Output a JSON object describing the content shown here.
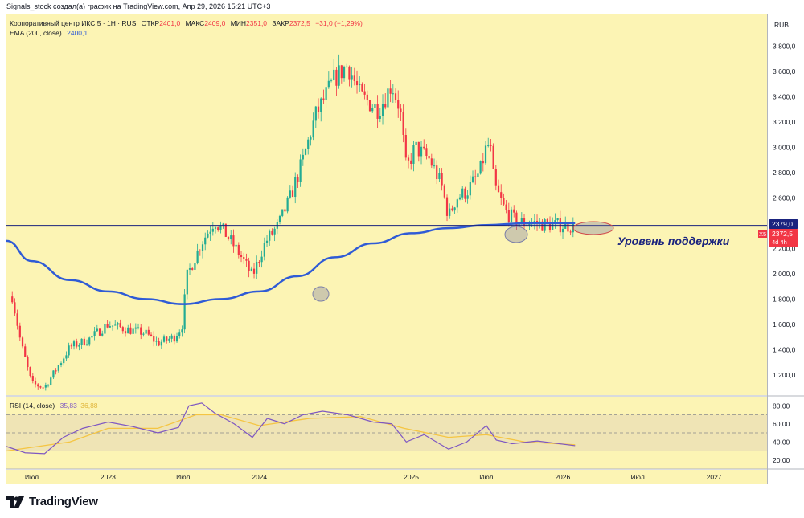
{
  "header_text": "Signals_stock создал(а) график на TradingView.com, Апр 29, 2026 15:21 UTC+3",
  "brand": "TradingView",
  "legend": {
    "title": "Корпоративный центр ИКС 5 · 1Н · RUS",
    "open_label": "ОТКР",
    "open_value": "2401,0",
    "high_label": "МАКС",
    "high_value": "2409,0",
    "low_label": "МИН",
    "low_value": "2351,0",
    "close_label": "ЗАКР",
    "close_value": "2372,5",
    "change": "−31,0 (−1,29%)",
    "ema_label": "EMA (200, close)",
    "ema_value": "2400,1"
  },
  "rsi_legend": {
    "label": "RSI (14, close)",
    "value": "35,83",
    "ma_value": "36,88"
  },
  "currency": "RUB",
  "annotation": "Уровень поддержки",
  "price_tags": {
    "level": "2379,0",
    "last": "2372,5",
    "ticker": "X5",
    "countdown": "4d 4h"
  },
  "colors": {
    "background": "#fcf4b4",
    "up": "#22ab94",
    "down": "#f23645",
    "ema": "#2f5bd6",
    "support": "#1a237e",
    "rsi": "#7e57c2",
    "rsi_ma": "#f5c542",
    "annotation": "#1a237e"
  },
  "chart_data": {
    "type": "candlestick",
    "title": "Корпоративный центр ИКС 5 · 1Н · RUS",
    "price_axis": {
      "ticks": [
        "1 200,0",
        "1 400,0",
        "1 600,0",
        "1 800,0",
        "2 000,0",
        "2 200,0",
        "2 400,0",
        "2 600,0",
        "2 800,0",
        "3 000,0",
        "3 200,0",
        "3 400,0",
        "3 600,0",
        "3 800,0"
      ],
      "range": [
        1040,
        4050
      ]
    },
    "time_axis": {
      "labels": [
        "Июл",
        "2023",
        "Июл",
        "2024",
        "2025",
        "Июл",
        "2026",
        "Июл",
        "2027"
      ],
      "range": [
        "2022-05",
        "2027-05"
      ]
    },
    "support_level": 2379,
    "price_path": [
      {
        "t": "2022-05-15",
        "p": 1820
      },
      {
        "t": "2022-06-05",
        "p": 1450
      },
      {
        "t": "2022-07-01",
        "p": 1130
      },
      {
        "t": "2022-08-01",
        "p": 1100
      },
      {
        "t": "2022-09-01",
        "p": 1260
      },
      {
        "t": "2022-10-01",
        "p": 1420
      },
      {
        "t": "2022-11-15",
        "p": 1480
      },
      {
        "t": "2023-01-01",
        "p": 1600
      },
      {
        "t": "2023-02-15",
        "p": 1560
      },
      {
        "t": "2023-04-01",
        "p": 1530
      },
      {
        "t": "2023-05-01",
        "p": 1450
      },
      {
        "t": "2023-06-10",
        "p": 1500
      },
      {
        "t": "2023-06-28",
        "p": 1580
      },
      {
        "t": "2023-07-10",
        "p": 1980
      },
      {
        "t": "2023-08-15",
        "p": 2250
      },
      {
        "t": "2023-09-15",
        "p": 2420
      },
      {
        "t": "2023-10-15",
        "p": 2300
      },
      {
        "t": "2023-11-15",
        "p": 2150
      },
      {
        "t": "2023-12-15",
        "p": 1980
      },
      {
        "t": "2024-01-15",
        "p": 2250
      },
      {
        "t": "2024-02-15",
        "p": 2380
      },
      {
        "t": "2024-03-15",
        "p": 2600
      },
      {
        "t": "2024-04-15",
        "p": 2900
      },
      {
        "t": "2024-05-15",
        "p": 3250
      },
      {
        "t": "2024-07-01",
        "p": 3550
      },
      {
        "t": "2024-08-01",
        "p": 3650
      },
      {
        "t": "2024-09-01",
        "p": 3400
      },
      {
        "t": "2024-10-15",
        "p": 3300
      },
      {
        "t": "2024-11-15",
        "p": 3500
      },
      {
        "t": "2024-12-05",
        "p": 3300
      },
      {
        "t": "2024-12-20",
        "p": 2820
      },
      {
        "t": "2025-01-10",
        "p": 3000
      },
      {
        "t": "2025-02-15",
        "p": 2900
      },
      {
        "t": "2025-03-15",
        "p": 2700
      },
      {
        "t": "2025-04-01",
        "p": 2450
      },
      {
        "t": "2025-04-20",
        "p": 2600
      },
      {
        "t": "2025-05-15",
        "p": 2650
      },
      {
        "t": "2025-06-15",
        "p": 2800
      },
      {
        "t": "2025-07-01",
        "p": 3000
      },
      {
        "t": "2025-07-10",
        "p": 3020
      },
      {
        "t": "2025-07-20",
        "p": 2700
      },
      {
        "t": "2025-08-15",
        "p": 2500
      },
      {
        "t": "2025-09-15",
        "p": 2400
      },
      {
        "t": "2025-10-15",
        "p": 2410
      },
      {
        "t": "2025-11-15",
        "p": 2390
      },
      {
        "t": "2025-12-15",
        "p": 2385
      },
      {
        "t": "2026-01-10",
        "p": 2380
      },
      {
        "t": "2026-01-31",
        "p": 2372.5
      }
    ],
    "ema_200": [
      {
        "t": "2022-05-01",
        "v": 2260
      },
      {
        "t": "2022-07-01",
        "v": 2100
      },
      {
        "t": "2022-10-01",
        "v": 1950
      },
      {
        "t": "2023-01-01",
        "v": 1860
      },
      {
        "t": "2023-04-01",
        "v": 1800
      },
      {
        "t": "2023-07-01",
        "v": 1760
      },
      {
        "t": "2023-10-01",
        "v": 1800
      },
      {
        "t": "2024-01-01",
        "v": 1860
      },
      {
        "t": "2024-04-01",
        "v": 1980
      },
      {
        "t": "2024-07-01",
        "v": 2130
      },
      {
        "t": "2024-10-01",
        "v": 2240
      },
      {
        "t": "2025-01-01",
        "v": 2320
      },
      {
        "t": "2025-04-01",
        "v": 2360
      },
      {
        "t": "2025-07-01",
        "v": 2385
      },
      {
        "t": "2025-10-01",
        "v": 2398
      },
      {
        "t": "2026-01-31",
        "v": 2400
      }
    ],
    "rsi": {
      "label": "RSI (14, close)",
      "value": 35.83,
      "ma_value": 36.88,
      "levels": [
        30,
        50,
        70
      ],
      "axis_ticks": [
        "20,00",
        "40,00",
        "60,00",
        "80,00"
      ],
      "range": [
        10,
        90
      ],
      "series": [
        {
          "t": "2022-05-01",
          "v": 35
        },
        {
          "t": "2022-06-15",
          "v": 28
        },
        {
          "t": "2022-08-01",
          "v": 27
        },
        {
          "t": "2022-09-15",
          "v": 45
        },
        {
          "t": "2022-11-01",
          "v": 55
        },
        {
          "t": "2023-01-01",
          "v": 62
        },
        {
          "t": "2023-03-01",
          "v": 57
        },
        {
          "t": "2023-05-01",
          "v": 50
        },
        {
          "t": "2023-06-20",
          "v": 56
        },
        {
          "t": "2023-07-15",
          "v": 80
        },
        {
          "t": "2023-08-15",
          "v": 83
        },
        {
          "t": "2023-09-15",
          "v": 72
        },
        {
          "t": "2023-11-01",
          "v": 60
        },
        {
          "t": "2023-12-15",
          "v": 45
        },
        {
          "t": "2024-01-20",
          "v": 66
        },
        {
          "t": "2024-03-01",
          "v": 60
        },
        {
          "t": "2024-04-15",
          "v": 70
        },
        {
          "t": "2024-06-01",
          "v": 74
        },
        {
          "t": "2024-08-01",
          "v": 70
        },
        {
          "t": "2024-10-01",
          "v": 62
        },
        {
          "t": "2024-11-15",
          "v": 60
        },
        {
          "t": "2024-12-20",
          "v": 40
        },
        {
          "t": "2025-02-01",
          "v": 48
        },
        {
          "t": "2025-04-01",
          "v": 32
        },
        {
          "t": "2025-05-15",
          "v": 40
        },
        {
          "t": "2025-07-01",
          "v": 58
        },
        {
          "t": "2025-07-25",
          "v": 42
        },
        {
          "t": "2025-09-01",
          "v": 38
        },
        {
          "t": "2025-11-01",
          "v": 41
        },
        {
          "t": "2026-01-31",
          "v": 35.83
        }
      ],
      "ma": [
        {
          "t": "2022-05-01",
          "v": 30
        },
        {
          "t": "2022-10-01",
          "v": 40
        },
        {
          "t": "2023-01-01",
          "v": 55
        },
        {
          "t": "2023-05-01",
          "v": 55
        },
        {
          "t": "2023-08-01",
          "v": 70
        },
        {
          "t": "2023-10-01",
          "v": 70
        },
        {
          "t": "2024-01-01",
          "v": 58
        },
        {
          "t": "2024-05-01",
          "v": 66
        },
        {
          "t": "2024-09-01",
          "v": 68
        },
        {
          "t": "2024-12-15",
          "v": 55
        },
        {
          "t": "2025-04-01",
          "v": 45
        },
        {
          "t": "2025-07-01",
          "v": 48
        },
        {
          "t": "2025-10-01",
          "v": 40
        },
        {
          "t": "2026-01-31",
          "v": 36.88
        }
      ]
    }
  }
}
